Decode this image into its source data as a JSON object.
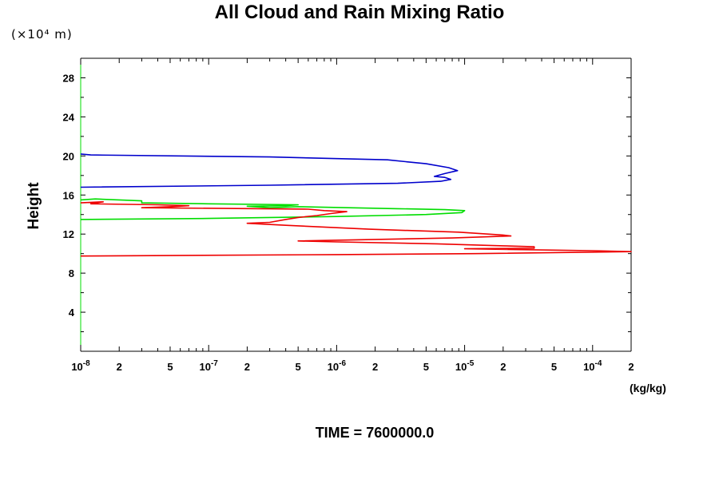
{
  "chart_data": {
    "type": "line",
    "title": "All Cloud and Rain Mixing Ratio",
    "y_units": "(×10⁴ m)",
    "ylabel": "Height",
    "xlabel": "(kg/kg)",
    "annotation": "TIME = 7600000.0",
    "x_scale": "log",
    "xlim": [
      1e-08,
      0.0002
    ],
    "ylim": [
      0,
      30
    ],
    "y_ticks": [
      "4",
      "8",
      "12",
      "16",
      "20",
      "24",
      "28"
    ],
    "x_tick_labels": [
      {
        "value": 1e-08,
        "mant": "10",
        "exp": "-8"
      },
      {
        "value": 2e-08,
        "mant": "2",
        "exp": ""
      },
      {
        "value": 5e-08,
        "mant": "5",
        "exp": ""
      },
      {
        "value": 1e-07,
        "mant": "10",
        "exp": "-7"
      },
      {
        "value": 2e-07,
        "mant": "2",
        "exp": ""
      },
      {
        "value": 5e-07,
        "mant": "5",
        "exp": ""
      },
      {
        "value": 1e-06,
        "mant": "10",
        "exp": "-6"
      },
      {
        "value": 2e-06,
        "mant": "2",
        "exp": ""
      },
      {
        "value": 5e-06,
        "mant": "5",
        "exp": ""
      },
      {
        "value": 1e-05,
        "mant": "10",
        "exp": "-5"
      },
      {
        "value": 2e-05,
        "mant": "2",
        "exp": ""
      },
      {
        "value": 5e-05,
        "mant": "5",
        "exp": ""
      },
      {
        "value": 0.0001,
        "mant": "10",
        "exp": "-4"
      },
      {
        "value": 0.0002,
        "mant": "2",
        "exp": ""
      }
    ],
    "series": [
      {
        "color": "#0000cc",
        "points": [
          [
            1e-08,
            20.2
          ],
          [
            1.2e-08,
            20.1
          ],
          [
            3e-07,
            19.9
          ],
          [
            2.5e-06,
            19.6
          ],
          [
            5e-06,
            19.2
          ],
          [
            7.5e-06,
            18.8
          ],
          [
            8.8e-06,
            18.5
          ],
          [
            7e-06,
            18.2
          ],
          [
            5.8e-06,
            17.9
          ],
          [
            7e-06,
            17.8
          ],
          [
            7.8e-06,
            17.6
          ],
          [
            6.5e-06,
            17.4
          ],
          [
            3e-06,
            17.2
          ],
          [
            3e-07,
            17.0
          ],
          [
            1e-08,
            16.8
          ]
        ]
      },
      {
        "color": "#00dd00",
        "points": [
          [
            1e-08,
            15.5
          ],
          [
            1.3e-08,
            15.6
          ],
          [
            3e-08,
            15.4
          ],
          [
            3e-08,
            15.2
          ],
          [
            1e-07,
            15.1
          ],
          [
            5e-07,
            15.0
          ],
          [
            4e-07,
            14.9
          ],
          [
            2e-07,
            14.85
          ],
          [
            3e-07,
            14.7
          ],
          [
            5e-07,
            14.8
          ],
          [
            3e-06,
            14.6
          ],
          [
            7e-06,
            14.5
          ],
          [
            1e-05,
            14.4
          ],
          [
            9.5e-06,
            14.2
          ],
          [
            5e-06,
            14.0
          ],
          [
            1e-06,
            13.8
          ],
          [
            1e-07,
            13.6
          ],
          [
            1e-08,
            13.5
          ]
        ]
      },
      {
        "color": "#ee0000",
        "points": [
          [
            1e-08,
            15.2
          ],
          [
            1.5e-08,
            15.3
          ],
          [
            1.2e-08,
            15.1
          ],
          [
            4e-08,
            15.0
          ],
          [
            7e-08,
            14.9
          ],
          [
            5e-08,
            14.8
          ],
          [
            3e-08,
            14.7
          ],
          [
            6e-07,
            14.55
          ],
          [
            8e-07,
            14.4
          ],
          [
            1.2e-06,
            14.3
          ],
          [
            9e-07,
            14.1
          ],
          [
            7e-07,
            13.9
          ],
          [
            5e-07,
            13.7
          ],
          [
            4e-07,
            13.5
          ],
          [
            3e-07,
            13.2
          ],
          [
            2e-07,
            13.1
          ],
          [
            4e-07,
            12.9
          ],
          [
            1.8e-06,
            12.5
          ],
          [
            9e-06,
            12.2
          ],
          [
            2e-05,
            11.9
          ],
          [
            2.3e-05,
            11.8
          ],
          [
            8e-06,
            11.6
          ],
          [
            5e-07,
            11.3
          ],
          [
            1e-06,
            11.2
          ],
          [
            6e-06,
            11.0
          ],
          [
            2e-05,
            10.8
          ],
          [
            3.5e-05,
            10.7
          ],
          [
            3.5e-05,
            10.55
          ],
          [
            1e-05,
            10.5
          ],
          [
            0.0001,
            10.3
          ],
          [
            0.0002,
            10.2
          ],
          [
            1.2e-05,
            10.0
          ],
          [
            1e-06,
            9.9
          ],
          [
            1e-08,
            9.75
          ]
        ]
      }
    ]
  }
}
